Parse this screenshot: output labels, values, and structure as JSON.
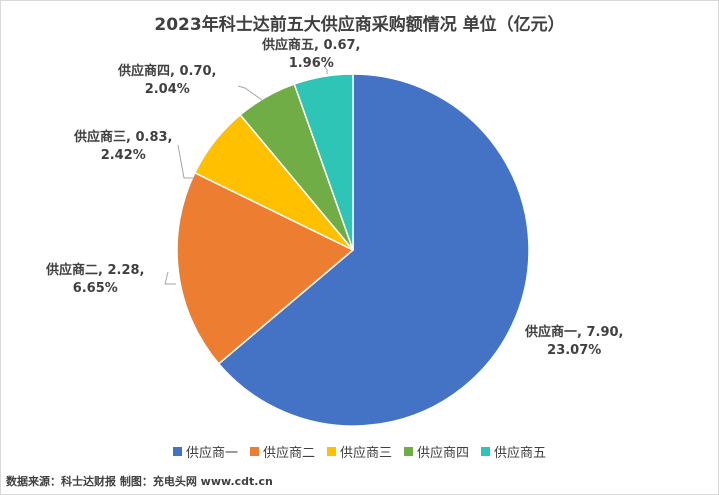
{
  "chart_data": {
    "type": "pie",
    "title": "2023年科士达前五大供应商采购额情况 单位（亿元）",
    "slices": [
      {
        "name": "供应商一",
        "value": 7.9,
        "percent": "23.07%",
        "value_label": "7.90",
        "color": "#4472C4"
      },
      {
        "name": "供应商二",
        "value": 2.28,
        "percent": "6.65%",
        "value_label": "2.28",
        "color": "#ED7D31"
      },
      {
        "name": "供应商三",
        "value": 0.83,
        "percent": "2.42%",
        "value_label": "0.83",
        "color": "#FFC000"
      },
      {
        "name": "供应商四",
        "value": 0.7,
        "percent": "2.04%",
        "value_label": "0.70",
        "color": "#70AD47"
      },
      {
        "name": "供应商五",
        "value": 0.67,
        "percent": "1.96%",
        "value_label": "0.67",
        "color": "#2EC4B6"
      }
    ],
    "legend_position": "bottom"
  },
  "source_note": "数据来源：科士达财报 制图：充电头网 www.cdt.cn"
}
